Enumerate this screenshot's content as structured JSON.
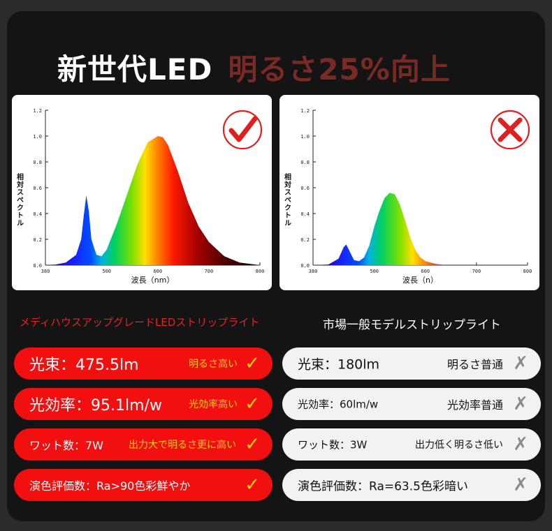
{
  "headline": {
    "white": "新世代LED",
    "red": "明るさ25%向上"
  },
  "chart_data": [
    {
      "type": "area",
      "ylabel": "相対スペクトル",
      "xlabel": "波長（nm）",
      "ylim": [
        0.0,
        1.2
      ],
      "xlim": [
        380,
        800
      ],
      "yticks": [
        "0.0",
        "0.2",
        "0.4",
        "0.6",
        "0.8",
        "1.0",
        "1.2"
      ],
      "xticks": [
        "380",
        "500",
        "600",
        "700",
        "800"
      ],
      "xtick_values": [
        380,
        500,
        600,
        700,
        800
      ],
      "series": [
        {
          "x": [
            380,
            400,
            420,
            440,
            450,
            455,
            460,
            465,
            470,
            480,
            490,
            500,
            520,
            540,
            560,
            580,
            600,
            610,
            620,
            640,
            660,
            680,
            700,
            730,
            760,
            800
          ],
          "values": [
            0,
            0.005,
            0.02,
            0.08,
            0.2,
            0.38,
            0.54,
            0.42,
            0.2,
            0.08,
            0.07,
            0.12,
            0.32,
            0.55,
            0.78,
            0.95,
            1.0,
            0.99,
            0.93,
            0.72,
            0.48,
            0.3,
            0.18,
            0.07,
            0.02,
            0.0
          ]
        }
      ],
      "mark": "check-good"
    },
    {
      "type": "area",
      "ylabel": "相対スペクトル",
      "xlabel": "波長（n）",
      "ylim": [
        0.0,
        1.2
      ],
      "xlim": [
        380,
        800
      ],
      "yticks": [
        "0.0",
        "0.2",
        "0.4",
        "0.6",
        "0.8",
        "1.0",
        "1.2"
      ],
      "xticks": [
        "380",
        "500",
        "600",
        "700",
        "800"
      ],
      "xtick_values": [
        380,
        500,
        600,
        700,
        800
      ],
      "series": [
        {
          "x": [
            380,
            410,
            430,
            440,
            445,
            450,
            460,
            470,
            480,
            490,
            500,
            510,
            520,
            530,
            540,
            550,
            560,
            570,
            580,
            590,
            600,
            620,
            640,
            800
          ],
          "values": [
            0,
            0.005,
            0.05,
            0.14,
            0.16,
            0.12,
            0.04,
            0.03,
            0.06,
            0.15,
            0.3,
            0.42,
            0.52,
            0.56,
            0.55,
            0.47,
            0.35,
            0.22,
            0.12,
            0.06,
            0.03,
            0.01,
            0.0,
            0.0
          ]
        }
      ],
      "mark": "cross-bad"
    }
  ],
  "subtitles": {
    "left": "メディハウスアップグレードLEDストリップライト",
    "right": "市場一般モデルストリップライト"
  },
  "left_rows": [
    {
      "text": "光束：475.5lm",
      "badge": "明るさ高い",
      "mark": "✓"
    },
    {
      "text": "光効率：95.1lm/w",
      "badge": "光効率高い",
      "mark": "✓"
    },
    {
      "text": "ワット数：7W",
      "badge": "出力大で明るさ更に高い",
      "mark": "✓"
    },
    {
      "text": "演色評価数：Ra>90色彩鮮やか",
      "badge": "",
      "mark": "✓"
    }
  ],
  "right_rows": [
    {
      "text": "光束：180lm",
      "badge": "明るさ普通",
      "mark": "✗"
    },
    {
      "text": "光効率：60lm/w",
      "badge": "光効率普通",
      "mark": "✗"
    },
    {
      "text": "ワット数：3W",
      "badge": "出力低く明るさ低い",
      "mark": "✗"
    },
    {
      "text": "演色評価数：Ra=63.5色彩暗い",
      "badge": "",
      "mark": "✗"
    }
  ],
  "colors": {
    "accent_red": "#f20f0f",
    "badge_yellow": "#ffd200",
    "muted_red": "#7a2a25"
  }
}
